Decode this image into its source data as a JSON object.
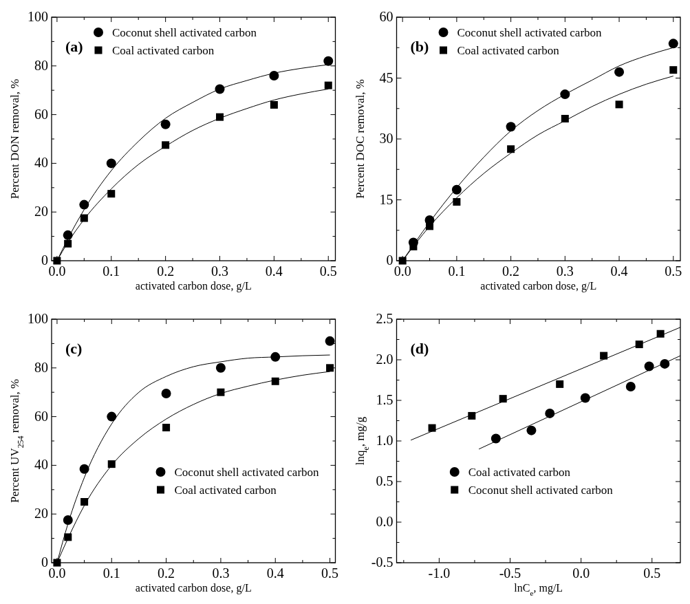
{
  "chart_data": [
    {
      "type": "scatter",
      "xlabel": "activated carbon dose, g/L",
      "ylabel": "Percent DON removal, %",
      "annotations": [
        "(a)"
      ],
      "legend": "top left",
      "xlim": [
        -0.01,
        0.513
      ],
      "xticks": [
        {
          "value": 0,
          "label": "0.0"
        },
        {
          "value": 0.05,
          "label": null
        },
        0.1,
        {
          "value": 0.15,
          "label": null
        },
        0.2,
        {
          "value": 0.25,
          "label": null
        },
        0.3,
        {
          "value": 0.35,
          "label": null
        },
        0.4,
        {
          "value": 0.45,
          "label": null
        },
        0.5
      ],
      "ylim": [
        0,
        100
      ],
      "yticks": [
        0,
        {
          "value": 10,
          "label": null
        },
        20,
        {
          "value": 30,
          "label": null
        },
        40,
        {
          "value": 50,
          "label": null
        },
        60,
        {
          "value": 70,
          "label": null
        },
        80,
        {
          "value": 90,
          "label": null
        },
        100
      ],
      "series": [
        {
          "name": "Coconut shell activated carbon",
          "color": "#000000",
          "marker": "circle",
          "x": [
            0.02,
            0.05,
            0.1,
            0.2,
            0.3,
            0.4,
            0.5
          ],
          "values": [
            10.5,
            23,
            40,
            56,
            70.5,
            76,
            82
          ]
        },
        {
          "name": "Coal activated carbon",
          "color": "#000000",
          "marker": "square",
          "x": [
            0,
            0.02,
            0.05,
            0.1,
            0.2,
            0.3,
            0.4,
            0.5
          ],
          "values": [
            0,
            7,
            17.5,
            27.5,
            47.5,
            59,
            64,
            72
          ]
        },
        {
          "type": "line",
          "color": "#000000",
          "marker": "none",
          "x": [
            0,
            0.02,
            0.05,
            0.1,
            0.15,
            0.2,
            0.25,
            0.3,
            0.35,
            0.4,
            0.45,
            0.5
          ],
          "values": [
            0,
            9,
            21,
            37,
            49,
            58.5,
            65,
            70.5,
            74,
            77,
            79,
            80.5
          ]
        },
        {
          "type": "line",
          "color": "#000000",
          "marker": "none",
          "x": [
            0,
            0.02,
            0.05,
            0.1,
            0.15,
            0.2,
            0.25,
            0.3,
            0.35,
            0.4,
            0.45,
            0.5
          ],
          "values": [
            0,
            7.5,
            17,
            29.5,
            39.5,
            47,
            53.5,
            58.5,
            62.5,
            66,
            68.5,
            70.5
          ]
        }
      ]
    },
    {
      "type": "scatter",
      "xlabel": "activated carbon dose, g/L",
      "ylabel": "Percent DOC removal, %",
      "annotations": [
        "(b)"
      ],
      "legend": "top left",
      "xlim": [
        -0.011,
        0.513
      ],
      "xticks": [
        {
          "value": 0,
          "label": "0.0"
        },
        {
          "value": 0.05,
          "label": null
        },
        0.1,
        {
          "value": 0.15,
          "label": null
        },
        0.2,
        {
          "value": 0.25,
          "label": null
        },
        0.3,
        {
          "value": 0.35,
          "label": null
        },
        0.4,
        {
          "value": 0.45,
          "label": null
        },
        0.5
      ],
      "ylim": [
        0,
        60
      ],
      "yticks": [
        0,
        {
          "value": 7.5,
          "label": null
        },
        15,
        {
          "value": 22.5,
          "label": null
        },
        30,
        {
          "value": 37.5,
          "label": null
        },
        45,
        {
          "value": 52.5,
          "label": null
        },
        60
      ],
      "series": [
        {
          "name": "Coconut shell activated carbon",
          "color": "#000000",
          "marker": "circle",
          "x": [
            0.02,
            0.05,
            0.1,
            0.2,
            0.3,
            0.4,
            0.5
          ],
          "values": [
            4.5,
            10,
            17.5,
            33,
            41,
            46.5,
            53.5
          ]
        },
        {
          "name": "Coal activated carbon",
          "color": "#000000",
          "marker": "square",
          "x": [
            0,
            0.02,
            0.05,
            0.1,
            0.2,
            0.3,
            0.4,
            0.5
          ],
          "values": [
            0,
            3.5,
            8.5,
            14.5,
            27.5,
            35,
            38.5,
            47
          ]
        },
        {
          "type": "line",
          "color": "#000000",
          "marker": "none",
          "x": [
            0,
            0.05,
            0.1,
            0.15,
            0.2,
            0.25,
            0.3,
            0.35,
            0.4,
            0.45,
            0.5
          ],
          "values": [
            0,
            9.5,
            18,
            25.5,
            32,
            37,
            41,
            44.5,
            48,
            50.5,
            52.5
          ]
        },
        {
          "type": "line",
          "color": "#000000",
          "marker": "none",
          "x": [
            0,
            0.05,
            0.1,
            0.15,
            0.2,
            0.25,
            0.3,
            0.35,
            0.4,
            0.45,
            0.5
          ],
          "values": [
            0,
            8.5,
            15.5,
            21.5,
            26.5,
            31,
            34.5,
            38,
            41,
            43.5,
            45.5
          ]
        }
      ]
    },
    {
      "type": "scatter",
      "xlabel": "activated carbon dose, g/L",
      "ylabel": "Percent UV$_{254}$ removal, %",
      "annotations": [
        "(c)"
      ],
      "legend": "bottom right",
      "xlim": [
        -0.01,
        0.51
      ],
      "xticks": [
        {
          "value": 0,
          "label": "0.0"
        },
        {
          "value": 0.05,
          "label": null
        },
        0.1,
        {
          "value": 0.15,
          "label": null
        },
        0.2,
        {
          "value": 0.25,
          "label": null
        },
        0.3,
        {
          "value": 0.35,
          "label": null
        },
        0.4,
        {
          "value": 0.45,
          "label": null
        },
        0.5
      ],
      "ylim": [
        0,
        100
      ],
      "yticks": [
        0,
        {
          "value": 10,
          "label": null
        },
        20,
        {
          "value": 30,
          "label": null
        },
        40,
        {
          "value": 50,
          "label": null
        },
        60,
        {
          "value": 70,
          "label": null
        },
        80,
        {
          "value": 90,
          "label": null
        },
        100
      ],
      "series": [
        {
          "name": "Coconut shell activated carbon",
          "color": "#000000",
          "marker": "circle",
          "x": [
            0.02,
            0.05,
            0.1,
            0.2,
            0.3,
            0.4,
            0.5
          ],
          "values": [
            17.5,
            38.5,
            60,
            69.5,
            80,
            84.5,
            91
          ]
        },
        {
          "name": "Coal activated carbon",
          "color": "#000000",
          "marker": "square",
          "x": [
            0,
            0.02,
            0.05,
            0.1,
            0.2,
            0.3,
            0.4,
            0.5
          ],
          "values": [
            0,
            10.5,
            25,
            40.5,
            55.5,
            70,
            74.5,
            80
          ]
        },
        {
          "type": "line",
          "color": "#000000",
          "marker": "none",
          "x": [
            0,
            0.02,
            0.05,
            0.1,
            0.15,
            0.2,
            0.25,
            0.3,
            0.35,
            0.4,
            0.45,
            0.5
          ],
          "values": [
            0,
            16,
            35,
            57,
            70,
            76.5,
            80.5,
            82.5,
            84,
            84.5,
            85,
            85.3
          ]
        },
        {
          "type": "line",
          "color": "#000000",
          "marker": "none",
          "x": [
            0,
            0.02,
            0.05,
            0.1,
            0.15,
            0.2,
            0.25,
            0.3,
            0.35,
            0.4,
            0.45,
            0.5
          ],
          "values": [
            0,
            10,
            23.5,
            40,
            51,
            59,
            65,
            69.5,
            72.5,
            75,
            77,
            78.5
          ]
        }
      ]
    },
    {
      "type": "scatter",
      "xlabel": "lnC$_{e}$, mg/L",
      "ylabel": "lnq$_{e}$, mg/g",
      "annotations": [
        "(d)"
      ],
      "legend": "bottom",
      "xlim": [
        -1.3,
        0.7
      ],
      "xticks": [
        {
          "value": -1.25,
          "label": null
        },
        {
          "value": -1,
          "label": "-1.0"
        },
        {
          "value": -0.75,
          "label": null
        },
        -0.5,
        {
          "value": -0.25,
          "label": null
        },
        {
          "value": 0,
          "label": "0.0"
        },
        {
          "value": 0.25,
          "label": null
        },
        0.5
      ],
      "ylim": [
        -0.5,
        2.5
      ],
      "yticks": [
        -0.5,
        {
          "value": -0.25,
          "label": null
        },
        {
          "value": 0,
          "label": "0.0"
        },
        {
          "value": 0.25,
          "label": null
        },
        0.5,
        {
          "value": 0.75,
          "label": null
        },
        {
          "value": 1,
          "label": "1.0"
        },
        {
          "value": 1.25,
          "label": null
        },
        1.5,
        {
          "value": 1.75,
          "label": null
        },
        {
          "value": 2,
          "label": "2.0"
        },
        {
          "value": 2.25,
          "label": null
        },
        2.5
      ],
      "series": [
        {
          "name": "Coal activated carbon",
          "color": "#000000",
          "marker": "circle",
          "x": [
            -0.6,
            -0.35,
            -0.22,
            0.03,
            0.35,
            0.48,
            0.59
          ],
          "values": [
            1.03,
            1.13,
            1.34,
            1.53,
            1.67,
            1.92,
            1.95
          ]
        },
        {
          "name": "Coconut shell activated carbon",
          "color": "#000000",
          "marker": "square",
          "x": [
            -1.05,
            -0.77,
            -0.55,
            -0.15,
            0.16,
            0.41,
            0.56
          ],
          "values": [
            1.16,
            1.31,
            1.52,
            1.7,
            2.05,
            2.19,
            2.32
          ]
        },
        {
          "type": "line",
          "color": "#000000",
          "marker": "none",
          "x": [
            -0.72,
            0.7
          ],
          "values": [
            0.9,
            2.05
          ]
        },
        {
          "type": "line",
          "color": "#000000",
          "marker": "none",
          "x": [
            -1.2,
            0.7
          ],
          "values": [
            1.01,
            2.4
          ]
        }
      ]
    }
  ]
}
